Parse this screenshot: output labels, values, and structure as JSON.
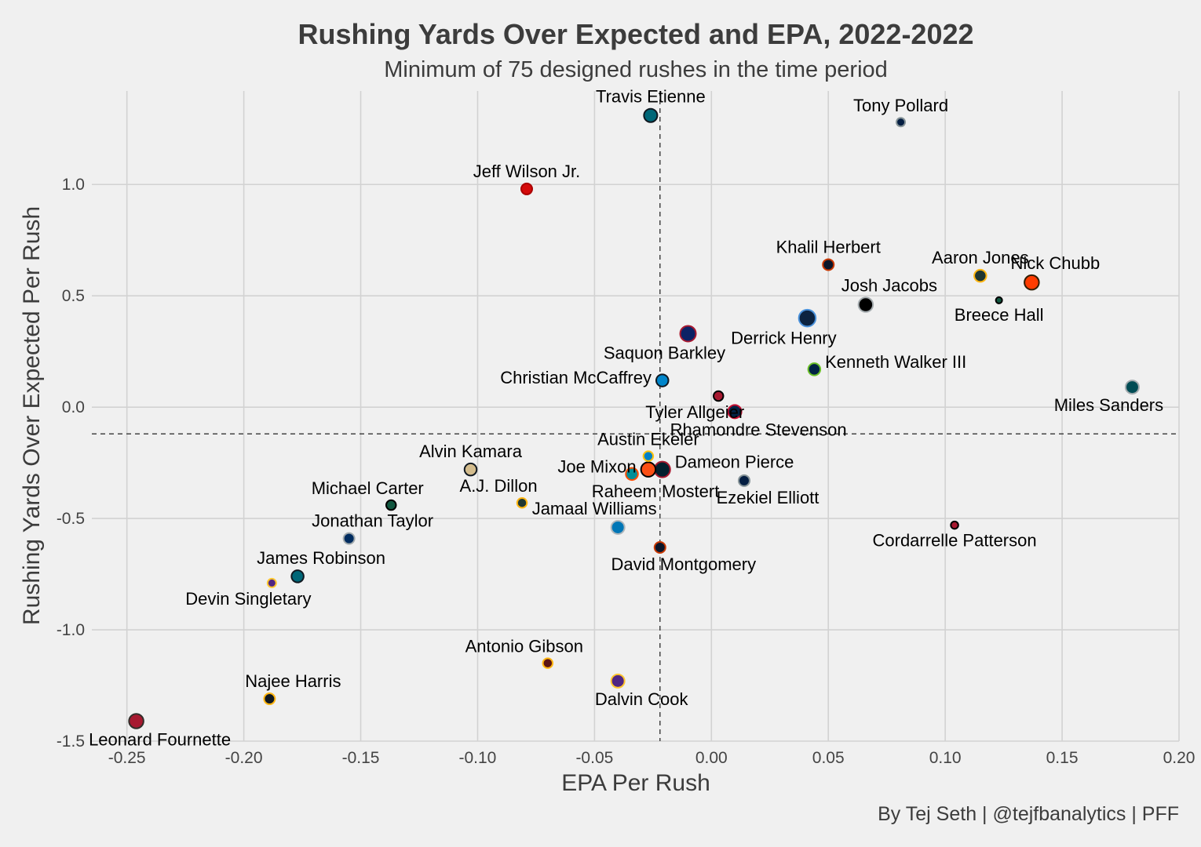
{
  "chart_data": {
    "type": "scatter",
    "title": "Rushing Yards Over Expected and EPA, 2022-2022",
    "subtitle": "Minimum of 75 designed rushes in the time period",
    "caption": "By Tej Seth | @tejfbanalytics | PFF",
    "xlabel": "EPA Per Rush",
    "ylabel": "Rushing Yards Over Expected Per Rush",
    "xlim": [
      -0.265,
      0.2
    ],
    "ylim": [
      -1.5,
      1.42
    ],
    "x_ticks": [
      {
        "value": -0.25,
        "label": "-0.25"
      },
      {
        "value": -0.2,
        "label": "-0.20"
      },
      {
        "value": -0.15,
        "label": "-0.15"
      },
      {
        "value": -0.1,
        "label": "-0.10"
      },
      {
        "value": -0.05,
        "label": "-0.05"
      },
      {
        "value": 0.0,
        "label": "0.00"
      },
      {
        "value": 0.05,
        "label": "0.05"
      },
      {
        "value": 0.1,
        "label": "0.10"
      },
      {
        "value": 0.15,
        "label": "0.15"
      },
      {
        "value": 0.2,
        "label": "0.20"
      }
    ],
    "y_ticks": [
      {
        "value": -1.5,
        "label": "-1.5"
      },
      {
        "value": -1.0,
        "label": "-1.0"
      },
      {
        "value": -0.5,
        "label": "-0.5"
      },
      {
        "value": 0.0,
        "label": "0.0"
      },
      {
        "value": 0.5,
        "label": "0.5"
      },
      {
        "value": 1.0,
        "label": "1.0"
      }
    ],
    "grid": true,
    "reference_lines": {
      "x_mean": -0.022,
      "y_mean": -0.12
    },
    "points": [
      {
        "name": "Travis Etienne",
        "x": -0.026,
        "y": 1.31,
        "fill": "#006778",
        "stroke": "#101820",
        "size": 8,
        "label_side": "top"
      },
      {
        "name": "Tony Pollard",
        "x": 0.081,
        "y": 1.28,
        "fill": "#041e42",
        "stroke": "#869397",
        "size": 4,
        "label_side": "top"
      },
      {
        "name": "Jeff Wilson Jr.",
        "x": -0.079,
        "y": 0.98,
        "fill": "#d50a0a",
        "stroke": "#aa0000",
        "size": 6,
        "label_side": "top"
      },
      {
        "name": "Khalil Herbert",
        "x": 0.05,
        "y": 0.64,
        "fill": "#0b162a",
        "stroke": "#c83803",
        "size": 6,
        "label_side": "top"
      },
      {
        "name": "Aaron Jones",
        "x": 0.115,
        "y": 0.59,
        "fill": "#203731",
        "stroke": "#ffb612",
        "size": 7,
        "label_side": "top"
      },
      {
        "name": "Nick Chubb",
        "x": 0.137,
        "y": 0.56,
        "fill": "#ff3c00",
        "stroke": "#311d00",
        "size": 9,
        "label_side": "top-right"
      },
      {
        "name": "Josh Jacobs",
        "x": 0.066,
        "y": 0.46,
        "fill": "#000000",
        "stroke": "#a5acaf",
        "size": 9,
        "label_side": "top-right"
      },
      {
        "name": "Breece Hall",
        "x": 0.123,
        "y": 0.48,
        "fill": "#125740",
        "stroke": "#000000",
        "size": 2,
        "label_side": "bottom"
      },
      {
        "name": "Derrick Henry",
        "x": 0.041,
        "y": 0.4,
        "fill": "#0c2340",
        "stroke": "#4b92db",
        "size": 11,
        "label_side": "bottom-left"
      },
      {
        "name": "Saquon Barkley",
        "x": -0.01,
        "y": 0.33,
        "fill": "#0b2265",
        "stroke": "#a71930",
        "size": 10,
        "label_side": "bottom-left"
      },
      {
        "name": "Kenneth Walker III",
        "x": 0.044,
        "y": 0.17,
        "fill": "#002244",
        "stroke": "#69be28",
        "size": 7,
        "label_side": "right"
      },
      {
        "name": "Christian McCaffrey",
        "x": -0.021,
        "y": 0.12,
        "fill": "#0085ca",
        "stroke": "#101820",
        "size": 7,
        "label_side": "left"
      },
      {
        "name": "Miles Sanders",
        "x": 0.18,
        "y": 0.09,
        "fill": "#004c54",
        "stroke": "#a5acaf",
        "size": 8,
        "label_side": "bottom-left"
      },
      {
        "name": "Tyler Allgeier",
        "x": 0.003,
        "y": 0.05,
        "fill": "#a71930",
        "stroke": "#000000",
        "size": 5,
        "label_side": "bottom-left"
      },
      {
        "name": "Rhamondre Stevenson",
        "x": 0.01,
        "y": -0.02,
        "fill": "#002244",
        "stroke": "#c60c30",
        "size": 8,
        "label_side": "bottom-right"
      },
      {
        "name": "Austin Ekeler",
        "x": -0.027,
        "y": -0.22,
        "fill": "#0080c6",
        "stroke": "#ffc20e",
        "size": 5,
        "label_side": "top"
      },
      {
        "name": "Alvin Kamara",
        "x": -0.103,
        "y": -0.28,
        "fill": "#d3bc8d",
        "stroke": "#101820",
        "size": 7,
        "label_side": "top"
      },
      {
        "name": "Joe Mixon",
        "x": -0.027,
        "y": -0.28,
        "fill": "#fb4f14",
        "stroke": "#000000",
        "size": 9,
        "label_side": "left"
      },
      {
        "name": "Dameon Pierce",
        "x": -0.021,
        "y": -0.28,
        "fill": "#03202f",
        "stroke": "#a71930",
        "size": 10,
        "label_side": "right"
      },
      {
        "name": "Raheem Mostert",
        "x": -0.034,
        "y": -0.3,
        "fill": "#008e97",
        "stroke": "#fc4c02",
        "size": 7,
        "label_side": "bottom-right"
      },
      {
        "name": "Ezekiel Elliott",
        "x": 0.014,
        "y": -0.33,
        "fill": "#041e42",
        "stroke": "#869397",
        "size": 6,
        "label_side": "bottom-right"
      },
      {
        "name": "Michael Carter",
        "x": -0.137,
        "y": -0.44,
        "fill": "#125740",
        "stroke": "#000000",
        "size": 5,
        "label_side": "top-left"
      },
      {
        "name": "A.J. Dillon",
        "x": -0.081,
        "y": -0.43,
        "fill": "#203731",
        "stroke": "#ffb612",
        "size": 5,
        "label_side": "top-left"
      },
      {
        "name": "Jamaal Williams",
        "x": -0.04,
        "y": -0.54,
        "fill": "#0076b6",
        "stroke": "#b0b7bc",
        "size": 8,
        "label_side": "top-left"
      },
      {
        "name": "Jonathan Taylor",
        "x": -0.155,
        "y": -0.59,
        "fill": "#002c5f",
        "stroke": "#a2aaad",
        "size": 6,
        "label_side": "top-right"
      },
      {
        "name": "Cordarrelle Patterson",
        "x": 0.104,
        "y": -0.53,
        "fill": "#a71930",
        "stroke": "#000000",
        "size": 3,
        "label_side": "bottom"
      },
      {
        "name": "David Montgomery",
        "x": -0.022,
        "y": -0.63,
        "fill": "#0b162a",
        "stroke": "#c83803",
        "size": 6,
        "label_side": "bottom-right"
      },
      {
        "name": "James Robinson",
        "x": -0.177,
        "y": -0.76,
        "fill": "#006778",
        "stroke": "#101820",
        "size": 7,
        "label_side": "top-right"
      },
      {
        "name": "Devin Singletary",
        "x": -0.188,
        "y": -0.79,
        "fill": "#4f2683",
        "stroke": "#ffc62f",
        "size": 4,
        "label_side": "bottom-left"
      },
      {
        "name": "Antonio Gibson",
        "x": -0.07,
        "y": -1.15,
        "fill": "#5a1414",
        "stroke": "#ffb612",
        "size": 5,
        "label_side": "top-left"
      },
      {
        "name": "Dalvin Cook",
        "x": -0.04,
        "y": -1.23,
        "fill": "#4f2683",
        "stroke": "#ffc62f",
        "size": 8,
        "label_side": "bottom-right"
      },
      {
        "name": "Najee Harris",
        "x": -0.189,
        "y": -1.31,
        "fill": "#101820",
        "stroke": "#ffb612",
        "size": 6,
        "label_side": "top-right"
      },
      {
        "name": "Leonard Fournette",
        "x": -0.246,
        "y": -1.41,
        "fill": "#a71930",
        "stroke": "#322f2b",
        "size": 9,
        "label_side": "bottom-right"
      }
    ]
  }
}
